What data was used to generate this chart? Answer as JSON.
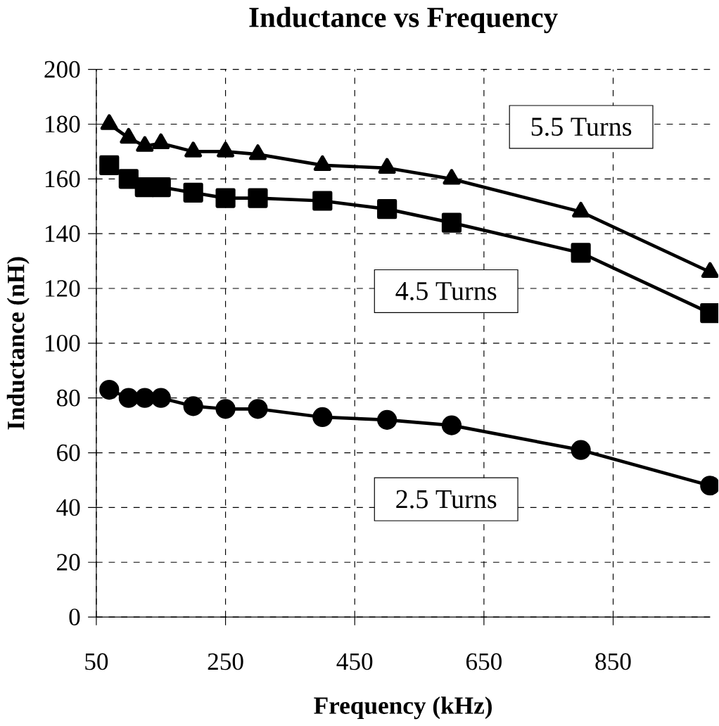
{
  "chart_data": {
    "type": "line",
    "title": "Inductance vs Frequency",
    "xlabel": "Frequency (kHz)",
    "ylabel": "Inductance (nH)",
    "x": [
      70,
      100,
      125,
      150,
      200,
      250,
      300,
      400,
      500,
      600,
      800,
      1000
    ],
    "series": [
      {
        "name": "5.5 Turns",
        "color": "#000000",
        "marker": "triangle",
        "values": [
          180,
          175,
          172,
          173,
          170,
          170,
          169,
          165,
          164,
          160,
          148,
          126
        ]
      },
      {
        "name": "4.5 Turns",
        "color": "#000000",
        "marker": "square",
        "values": [
          165,
          160,
          157,
          157,
          155,
          153,
          153,
          152,
          149,
          144,
          133,
          111
        ]
      },
      {
        "name": "2.5 Turns",
        "color": "#000000",
        "marker": "circle",
        "values": [
          83,
          80,
          80,
          80,
          77,
          76,
          76,
          73,
          72,
          70,
          61,
          48
        ]
      }
    ],
    "xlim": [
      50,
      1000
    ],
    "xticks": [
      50,
      250,
      450,
      650,
      850
    ],
    "ylim": [
      0,
      200
    ],
    "yticks": [
      0,
      20,
      40,
      60,
      80,
      100,
      120,
      140,
      160,
      180,
      200
    ],
    "grid": true,
    "line_style": "solid"
  }
}
